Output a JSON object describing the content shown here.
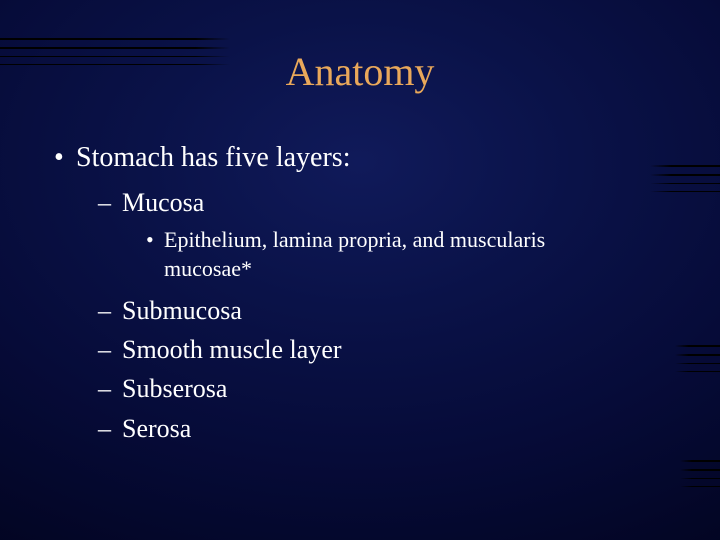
{
  "colors": {
    "background_center": "#101a5a",
    "background_edge": "#010210",
    "title_color": "#e9a85a",
    "text_color": "#ffffff",
    "deco_line_color": "#000000"
  },
  "typography": {
    "font_family": "Times New Roman",
    "title_fontsize_pt": 40,
    "level1_fontsize_pt": 28,
    "level2_fontsize_pt": 26,
    "level3_fontsize_pt": 22
  },
  "slide": {
    "title": "Anatomy",
    "level1": {
      "bullet": "•",
      "text": "Stomach has five layers:"
    },
    "level2_dash": "–",
    "level3_bullet": "•",
    "items_before": [
      "Mucosa"
    ],
    "sub_item": "Epithelium, lamina propria, and muscularis mucosae*",
    "items_after": [
      "Submucosa",
      "Smooth muscle layer",
      "Subserosa",
      "Serosa"
    ]
  }
}
